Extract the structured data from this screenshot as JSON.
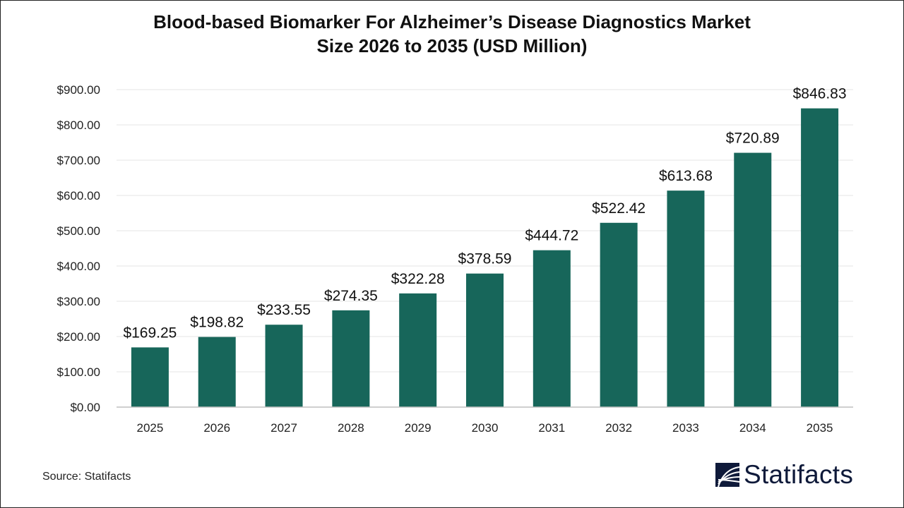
{
  "title_line1": "Blood-based Biomarker For Alzheimer’s Disease Diagnostics Market",
  "title_line2": "Size 2026 to 2035 (USD Million)",
  "source": "Source: Statifacts",
  "logo_text": "Statifacts",
  "colors": {
    "bar": "#17665a",
    "grid": "#e6e6e6",
    "axis": "#bfbfbf",
    "logo": "#0f1a3a"
  },
  "chart_data": {
    "type": "bar",
    "title": "Blood-based Biomarker For Alzheimer’s Disease Diagnostics Market Size 2026 to 2035 (USD Million)",
    "categories": [
      "2025",
      "2026",
      "2027",
      "2028",
      "2029",
      "2030",
      "2031",
      "2032",
      "2033",
      "2034",
      "2035"
    ],
    "values": [
      169.25,
      198.82,
      233.55,
      274.35,
      322.28,
      378.59,
      444.72,
      522.42,
      613.68,
      720.89,
      846.83
    ],
    "data_labels": [
      "$169.25",
      "$198.82",
      "$233.55",
      "$274.35",
      "$322.28",
      "$378.59",
      "$444.72",
      "$522.42",
      "$613.68",
      "$720.89",
      "$846.83"
    ],
    "ylim": [
      0,
      900
    ],
    "yticks": [
      "$0.00",
      "$100.00",
      "$200.00",
      "$300.00",
      "$400.00",
      "$500.00",
      "$600.00",
      "$700.00",
      "$800.00",
      "$900.00"
    ],
    "xlabel": "",
    "ylabel": "",
    "grid": true,
    "legend": "none"
  }
}
